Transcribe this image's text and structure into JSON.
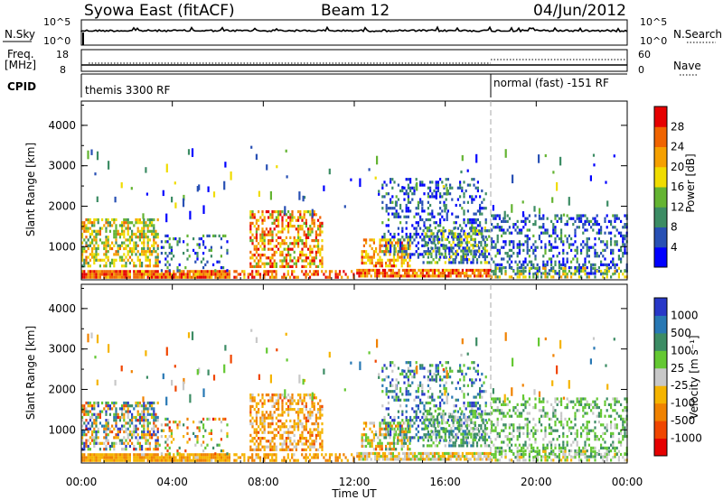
{
  "header": {
    "station": "Syowa East (fitACF)",
    "beam": "Beam 12",
    "date": "04/Jun/2012"
  },
  "sky_panel": {
    "left_label": "N.Sky",
    "left_ticks": [
      "10^5",
      "10^0"
    ],
    "right_ticks": [
      "10^5",
      "10^0"
    ],
    "right_label": "N.Search"
  },
  "freq_panel": {
    "left_label_1": "Freq.",
    "left_label_2": "[MHz]",
    "left_ticks": [
      "18",
      "8"
    ],
    "right_ticks": [
      "60",
      "0"
    ],
    "right_label": "Nave"
  },
  "cpid_panel": {
    "label": "CPID",
    "mode_1": "themis 3300 RF",
    "mode_2": "normal (fast) -151 RF",
    "switch_time_hours": 18.0
  },
  "chart_data": [
    {
      "type": "heatmap",
      "name": "power",
      "ylabel": "Slant Range [km]",
      "xlabel": "Time UT",
      "x_ticks": [
        "00:00",
        "04:00",
        "08:00",
        "12:00",
        "16:00",
        "20:00",
        "00:00"
      ],
      "x_range_hours": [
        0,
        24
      ],
      "y_ticks": [
        1000,
        2000,
        3000,
        4000
      ],
      "y_range_km": [
        180,
        4600
      ],
      "colorbar_label": "Power [dB]",
      "colorbar_ticks": [
        4,
        8,
        12,
        16,
        20,
        24,
        28
      ],
      "colorbar_range": [
        0,
        32
      ],
      "colors": [
        "#0000ff",
        "#2850b4",
        "#3c8c64",
        "#64b432",
        "#f0dc00",
        "#f5a000",
        "#f06400",
        "#e60000"
      ]
    },
    {
      "type": "heatmap",
      "name": "velocity",
      "ylabel": "Slant Range [km]",
      "xlabel": "Time UT",
      "x_ticks": [
        "00:00",
        "04:00",
        "08:00",
        "12:00",
        "16:00",
        "20:00",
        "00:00"
      ],
      "x_range_hours": [
        0,
        24
      ],
      "y_ticks": [
        1000,
        2000,
        3000,
        4000
      ],
      "y_range_km": [
        180,
        4600
      ],
      "colorbar_label": "Velocity [m s⁻¹]",
      "colorbar_ticks": [
        1000,
        500,
        100,
        25,
        -25,
        -100,
        -500,
        -1000
      ],
      "colors": [
        "#2838c8",
        "#2878b4",
        "#3c8c64",
        "#64c832",
        "#c8c8c8",
        "#f5b400",
        "#f08200",
        "#f04600",
        "#e60000"
      ]
    }
  ],
  "x_axis_label": "Time UT"
}
